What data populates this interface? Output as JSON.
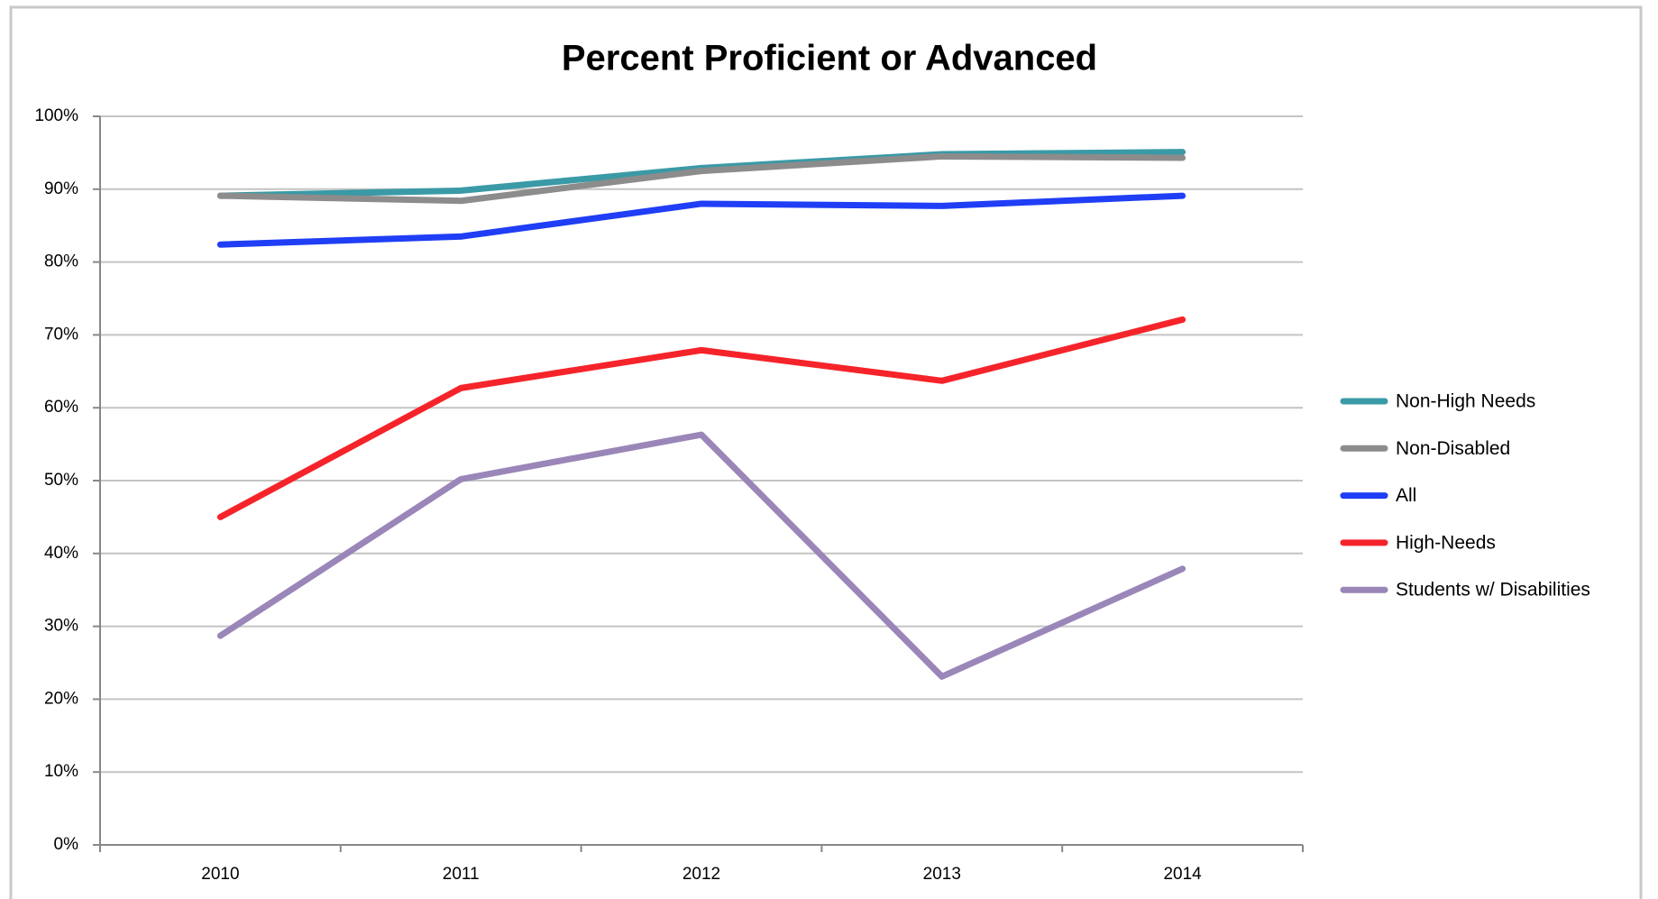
{
  "chart_data": {
    "type": "line",
    "title": "Percent Proficient or Advanced",
    "categories": [
      "2010",
      "2011",
      "2012",
      "2013",
      "2014"
    ],
    "series": [
      {
        "name": "Non-High Needs",
        "color": "#3a9aa6",
        "values": [
          89.1,
          89.8,
          92.9,
          94.8,
          95.1
        ]
      },
      {
        "name": "Non-Disabled",
        "color": "#8c8c8c",
        "values": [
          89.1,
          88.4,
          92.5,
          94.5,
          94.3
        ]
      },
      {
        "name": "All",
        "color": "#1f3ef5",
        "values": [
          82.4,
          83.5,
          88.0,
          87.7,
          89.1
        ]
      },
      {
        "name": "High-Needs",
        "color": "#f5242a",
        "values": [
          45.0,
          62.7,
          67.9,
          63.7,
          72.1
        ]
      },
      {
        "name": "Students w/ Disabilities",
        "color": "#9a86b8",
        "values": [
          28.7,
          50.2,
          56.3,
          23.1,
          37.9
        ]
      }
    ],
    "ylim": [
      0,
      100
    ],
    "yticks": [
      {
        "value": 0,
        "label": "0%"
      },
      {
        "value": 10,
        "label": "10%"
      },
      {
        "value": 20,
        "label": "20%"
      },
      {
        "value": 30,
        "label": "30%"
      },
      {
        "value": 40,
        "label": "40%"
      },
      {
        "value": 50,
        "label": "50%"
      },
      {
        "value": 60,
        "label": "60%"
      },
      {
        "value": 70,
        "label": "70%"
      },
      {
        "value": 80,
        "label": "80%"
      },
      {
        "value": 90,
        "label": "90%"
      },
      {
        "value": 100,
        "label": "100%"
      }
    ],
    "grid": true,
    "legend": "right"
  }
}
